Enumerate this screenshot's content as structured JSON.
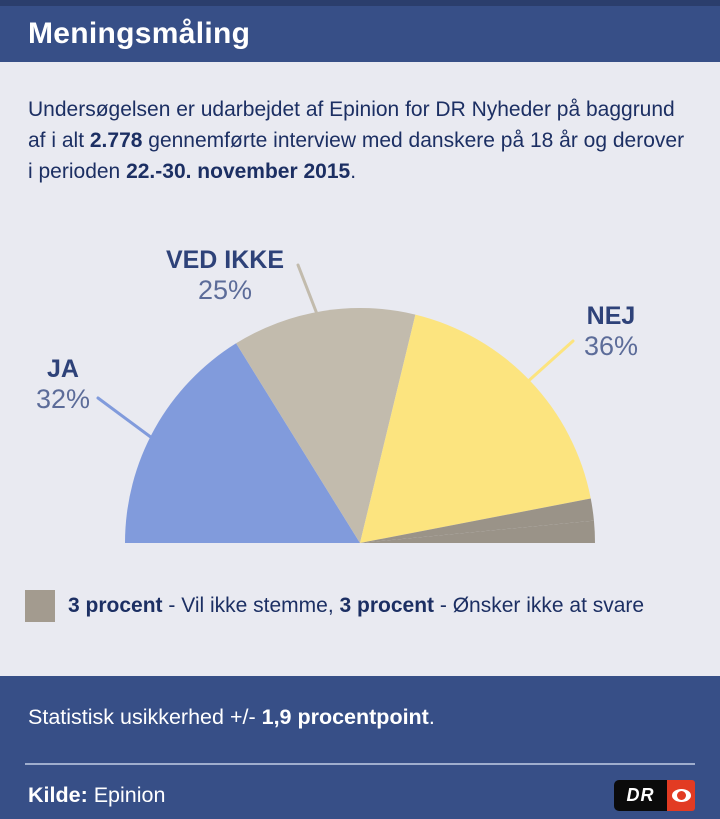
{
  "header": {
    "title": "Meningsmåling"
  },
  "intro": {
    "part1": "Undersøgelsen er udarbejdet af Epinion for DR Nyheder på baggrund af i alt ",
    "bold1": "2.778",
    "part2": " gennemførte interview med danskere på 18 år og derover i perioden ",
    "bold2": "22.-30. november 2015",
    "part3": "."
  },
  "chart_data": {
    "type": "pie",
    "shape": "semicircle",
    "unit": "%",
    "legend_position": "bottom",
    "slices": [
      {
        "label": "JA",
        "value": 32,
        "pct_display": "32%",
        "color": "#819BDC"
      },
      {
        "label": "VED IKKE",
        "value": 25,
        "pct_display": "25%",
        "color": "#C2BBAD"
      },
      {
        "label": "NEJ",
        "value": 36,
        "pct_display": "36%",
        "color": "#FCE47F"
      },
      {
        "label": "Vil ikke stemme",
        "value": 3,
        "pct_display": "3%",
        "color": "#9A9388"
      },
      {
        "label": "Ønsker ikke at svare",
        "value": 3,
        "pct_display": "3%",
        "color": "#9A9388"
      }
    ]
  },
  "legend": {
    "swatch_color": "#A39B8F",
    "bold1": "3 procent",
    "text1": " - Vil ikke stemme, ",
    "bold2": "3 procent",
    "text2": " - Ønsker ikke at svare"
  },
  "footer": {
    "stat_prefix": "Statistisk usikkerhed +/- ",
    "stat_bold": "1,9 procentpoint",
    "stat_suffix": ".",
    "source_label": "Kilde:",
    "source_name": " Epinion",
    "dr_logo_text": "DR"
  },
  "colors": {
    "header_bg": "#374F87",
    "top_strip": "#2B3E6C",
    "page_bg": "#E9EAF1",
    "body_text": "#1C2F63",
    "label_text": "#2E4279",
    "pct_text": "#5C6C99",
    "divider": "#9FAECE",
    "dr_red": "#E23B23"
  }
}
